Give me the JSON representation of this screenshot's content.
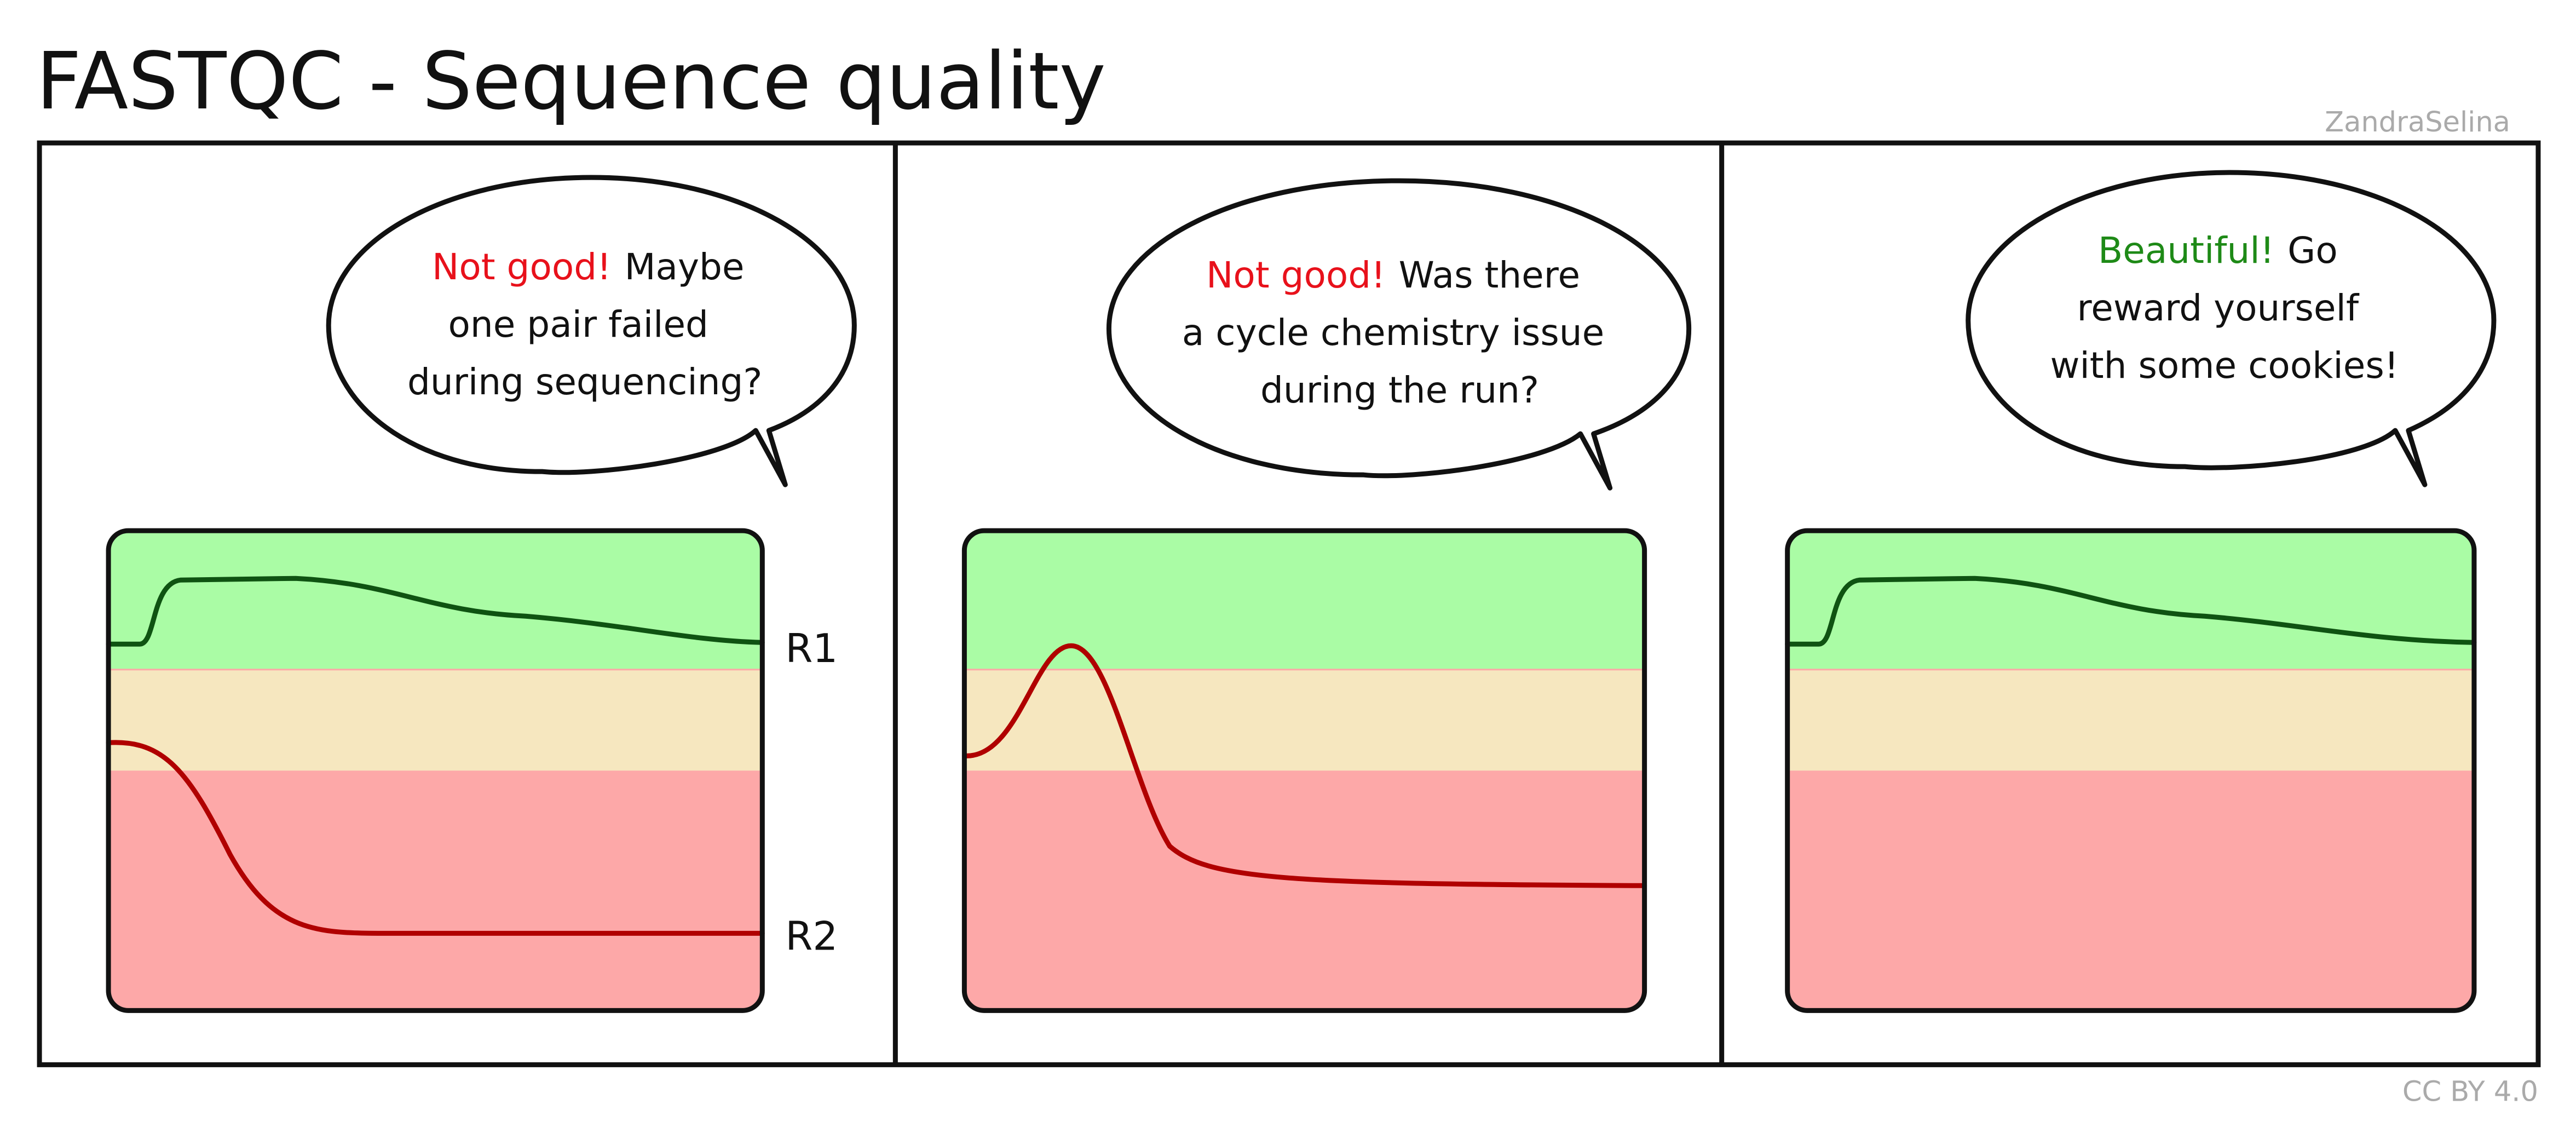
{
  "title": "FASTQC - Sequence quality",
  "signature": "ZandraSelina",
  "license": "CC BY 4.0",
  "panels": [
    {
      "speech": {
        "highlight": "Not good!",
        "lines": [
          "Maybe",
          "one pair failed",
          "during sequencing?"
        ]
      },
      "labels": [
        "R1",
        "R2"
      ]
    },
    {
      "speech": {
        "highlight": "Not good!",
        "lines": [
          "Was there",
          "a cycle chemistry issue",
          "during the run?"
        ]
      }
    },
    {
      "speech": {
        "highlight": "Beautiful!",
        "lines": [
          "Go",
          "reward yourself",
          "with some cookies!"
        ]
      }
    }
  ]
}
